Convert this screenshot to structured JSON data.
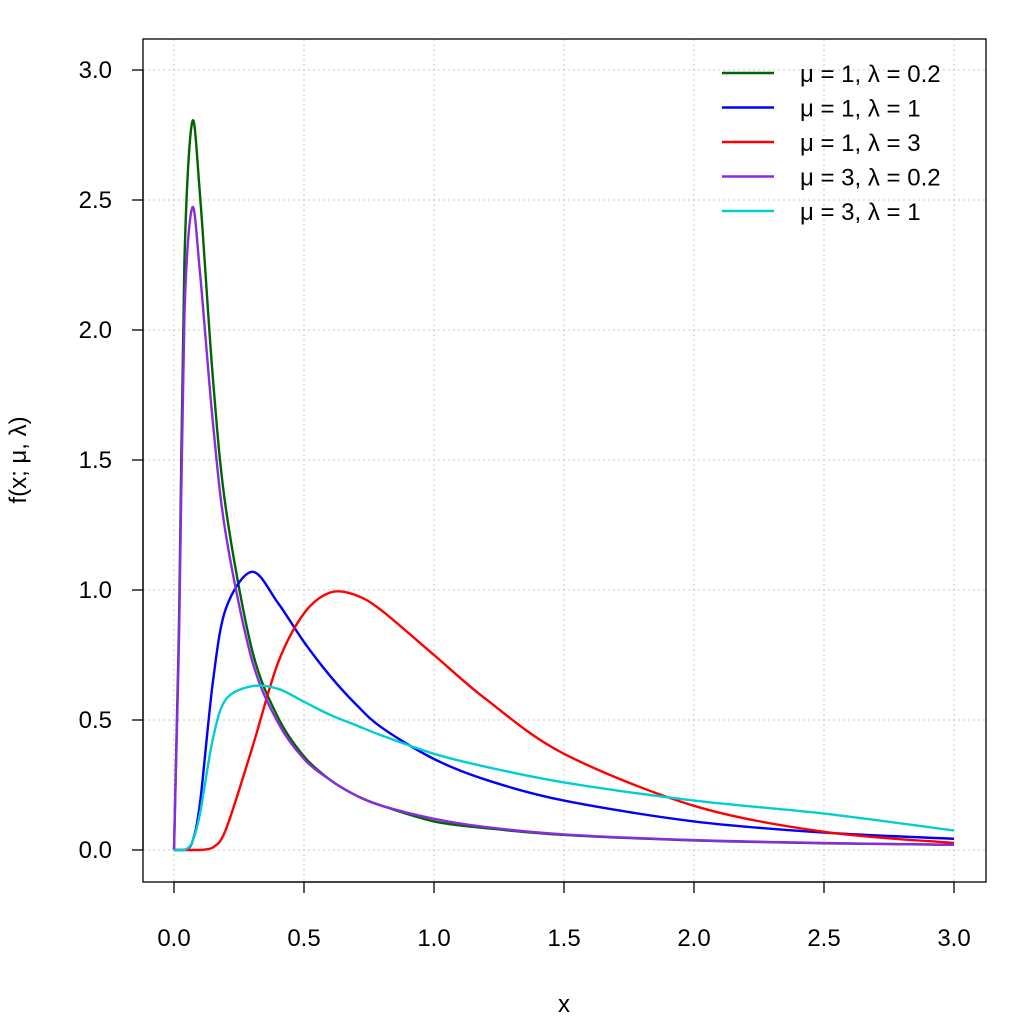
{
  "chart_data": {
    "type": "line",
    "title": "",
    "xlabel": "x",
    "ylabel": "f(x;  μ, λ)",
    "xlim": [
      0,
      3
    ],
    "ylim": [
      0,
      3
    ],
    "x_ticks": [
      "0.0",
      "0.5",
      "1.0",
      "1.5",
      "2.0",
      "2.5",
      "3.0"
    ],
    "y_ticks": [
      "0.0",
      "0.5",
      "1.0",
      "1.5",
      "2.0",
      "2.5",
      "3.0"
    ],
    "grid": true,
    "legend_position": "top-right",
    "x": [
      0.0,
      0.02,
      0.04,
      0.07,
      0.1,
      0.15,
      0.2,
      0.3,
      0.4,
      0.5,
      0.6,
      0.7,
      0.8,
      1.0,
      1.2,
      1.5,
      2.0,
      2.5,
      3.0
    ],
    "series": [
      {
        "name": "μ = 1, λ = 0.2",
        "color": "#006400",
        "values": [
          0.0,
          0.92,
          2.26,
          2.8,
          2.52,
          1.81,
          1.31,
          0.77,
          0.51,
          0.36,
          0.27,
          0.21,
          0.17,
          0.11,
          0.084,
          0.058,
          0.037,
          0.026,
          0.02
        ]
      },
      {
        "name": "μ = 1, λ = 1",
        "color": "#0000ff",
        "values": [
          0.0,
          0.0,
          0.0,
          0.03,
          0.18,
          0.65,
          0.93,
          1.07,
          0.95,
          0.8,
          0.67,
          0.56,
          0.47,
          0.35,
          0.27,
          0.19,
          0.11,
          0.067,
          0.043
        ]
      },
      {
        "name": "μ = 1, λ = 3",
        "color": "#ff0000",
        "values": [
          0.0,
          0.0,
          0.0,
          0.0,
          0.0,
          0.01,
          0.08,
          0.39,
          0.72,
          0.91,
          0.99,
          0.98,
          0.92,
          0.75,
          0.58,
          0.37,
          0.17,
          0.07,
          0.027
        ]
      },
      {
        "name": "μ = 3, λ = 0.2",
        "color": "#8a2be2",
        "values": [
          0.0,
          0.85,
          2.05,
          2.47,
          2.22,
          1.64,
          1.21,
          0.73,
          0.49,
          0.35,
          0.27,
          0.21,
          0.17,
          0.12,
          0.088,
          0.06,
          0.038,
          0.027,
          0.02
        ]
      },
      {
        "name": "μ = 3, λ = 1",
        "color": "#00ced1",
        "values": [
          0.0,
          0.0,
          0.0,
          0.03,
          0.14,
          0.43,
          0.58,
          0.63,
          0.62,
          0.57,
          0.52,
          0.48,
          0.44,
          0.37,
          0.32,
          0.26,
          0.19,
          0.14,
          0.075
        ]
      }
    ]
  }
}
